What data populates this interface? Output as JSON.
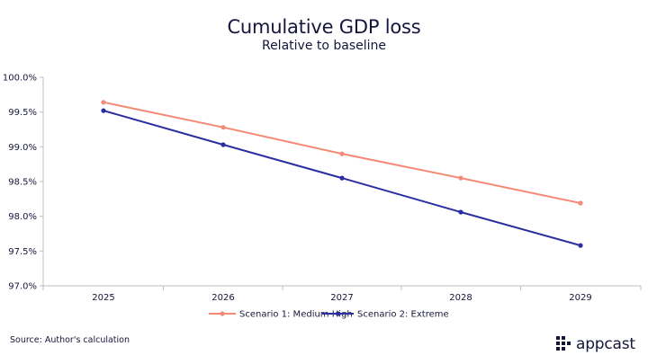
{
  "header": {
    "title": "Cumulative GDP loss",
    "subtitle": "Relative to baseline"
  },
  "footer": {
    "source": "Source: Author's calculation",
    "logo_text": "appcast"
  },
  "colors": {
    "series1": "#f58a76",
    "series2": "#2b2ea0",
    "axis": "#bfbfbf",
    "text": "#15163a"
  },
  "chart_data": {
    "type": "line",
    "title": "Cumulative GDP loss",
    "subtitle": "Relative to baseline",
    "xlabel": "",
    "ylabel": "",
    "categories": [
      "2025",
      "2026",
      "2027",
      "2028",
      "2029"
    ],
    "ylim": [
      97.0,
      100.0
    ],
    "yticks": [
      "97.0%",
      "97.5%",
      "98.0%",
      "98.5%",
      "99.0%",
      "99.5%",
      "100.0%"
    ],
    "ytick_values": [
      97.0,
      97.5,
      98.0,
      98.5,
      99.0,
      99.5,
      100.0
    ],
    "grid": false,
    "legend_position": "bottom",
    "series": [
      {
        "name": "Scenario 1:  Medium High",
        "values": [
          99.64,
          99.28,
          98.9,
          98.55,
          98.19
        ]
      },
      {
        "name": "Scenario 2: Extreme",
        "values": [
          99.52,
          99.03,
          98.55,
          98.06,
          97.58
        ]
      }
    ]
  }
}
